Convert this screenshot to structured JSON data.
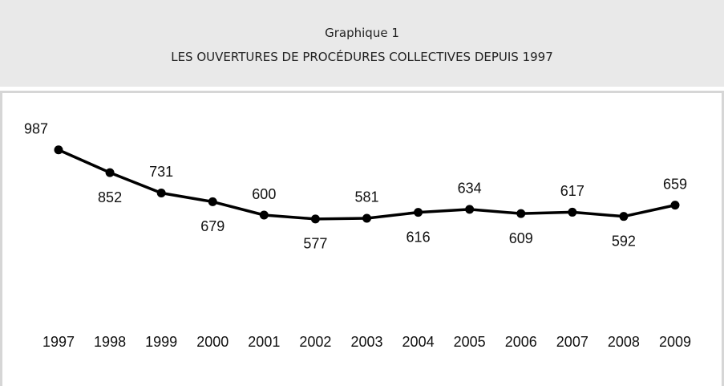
{
  "chart_data": {
    "type": "line",
    "title": "Graphique 1",
    "subtitle": "LES OUVERTURES DE PROCÉDURES COLLECTIVES DEPUIS 1997",
    "categories": [
      "1997",
      "1998",
      "1999",
      "2000",
      "2001",
      "2002",
      "2003",
      "2004",
      "2005",
      "2006",
      "2007",
      "2008",
      "2009"
    ],
    "series": [
      {
        "name": null,
        "color": "#000000",
        "values": [
          987,
          852,
          731,
          679,
          600,
          577,
          581,
          616,
          634,
          609,
          617,
          592,
          659
        ]
      }
    ],
    "ylim": [
      0,
      1000
    ]
  }
}
